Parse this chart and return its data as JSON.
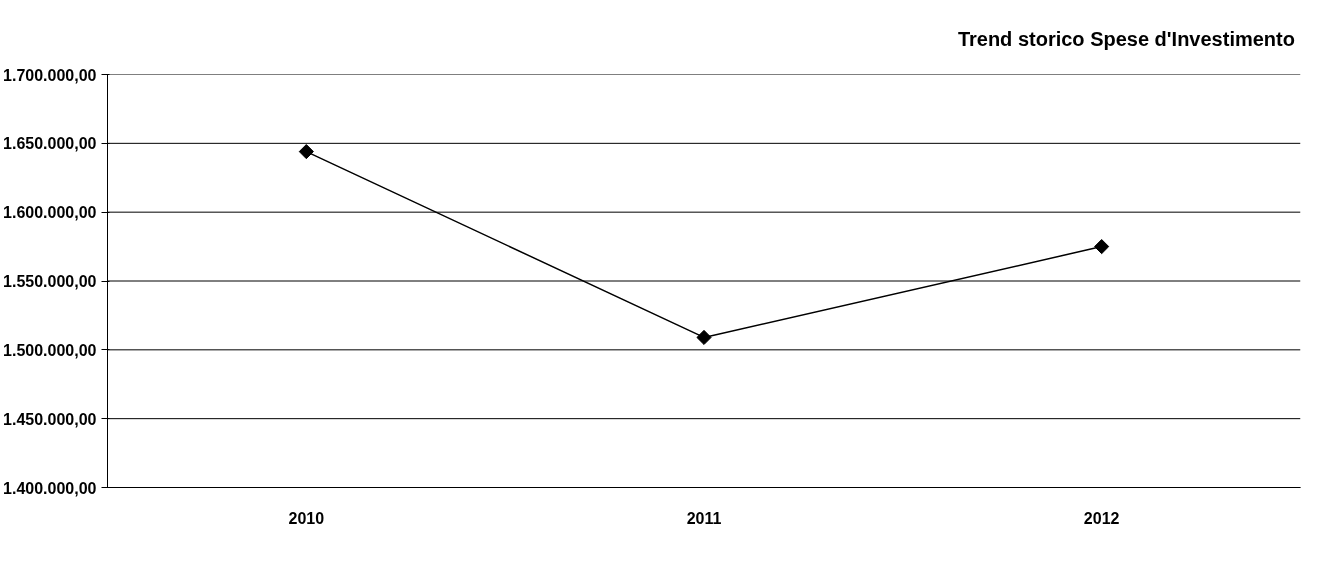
{
  "chart_data": {
    "type": "line",
    "title": "Trend storico  Spese d'Investimento",
    "categories": [
      "2010",
      "2011",
      "2012"
    ],
    "series": [
      {
        "color": "#000000",
        "values": [
          1644000,
          1509000,
          1575000
        ]
      }
    ],
    "ylim": [
      1400000,
      1700000
    ],
    "yticks": [
      {
        "value": 1400000,
        "label": "1.400.000,00"
      },
      {
        "value": 1450000,
        "label": "1.450.000,00"
      },
      {
        "value": 1500000,
        "label": "1.500.000,00"
      },
      {
        "value": 1550000,
        "label": "1.550.000,00"
      },
      {
        "value": 1600000,
        "label": "1.600.000,00"
      },
      {
        "value": 1650000,
        "label": "1.650.000,00"
      },
      {
        "value": 1700000,
        "label": "1.700.000,00"
      }
    ],
    "grid": "y",
    "marker": "diamond",
    "line_style": "solid"
  }
}
